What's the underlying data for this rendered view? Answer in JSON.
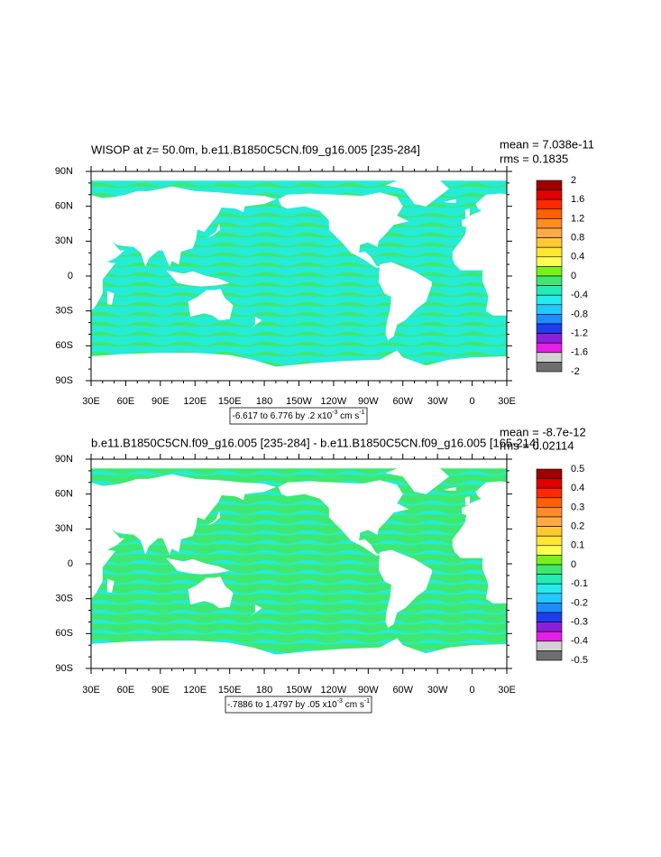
{
  "panels": [
    {
      "title": "WISOP at z=  50.0m, b.e11.B1850C5CN.f09_g16.005 [235-284]",
      "mean": "mean = 7.038e-11",
      "rms": "rms = 0.1835",
      "y_labels": [
        "90N",
        "60N",
        "30N",
        "0",
        "30S",
        "60S",
        "90S"
      ],
      "x_labels": [
        "30E",
        "60E",
        "90E",
        "120E",
        "150E",
        "180",
        "150W",
        "120W",
        "90W",
        "60W",
        "30W",
        "0",
        "30E"
      ],
      "info": {
        "text": "-6.617 to 6.776 by .2 x10",
        "exp": "-3",
        "unit": " cm s",
        "unit_exp": "-1"
      },
      "colorbar_labels": [
        2,
        1.6,
        1.2,
        0.8,
        0.4,
        0,
        -0.4,
        -0.8,
        -1.2,
        -1.6,
        -2
      ],
      "ocean_base": "#24ecd8",
      "ocean_streak": "#3ee870"
    },
    {
      "title": "b.e11.B1850C5CN.f09_g16.005 [235-284] - b.e11.B1850C5CN.f09_g16.005 [165-214]",
      "mean": "mean = -8.7e-12",
      "rms": "rms = 0.02114",
      "y_labels": [
        "90N",
        "60N",
        "30N",
        "0",
        "30S",
        "60S",
        "90S"
      ],
      "x_labels": [
        "30E",
        "60E",
        "90E",
        "120E",
        "150E",
        "180",
        "150W",
        "120W",
        "90W",
        "60W",
        "30W",
        "0",
        "30E"
      ],
      "info": {
        "text": "-.7886 to 1.4797 by .05 x10",
        "exp": "-3",
        "unit": " cm s",
        "unit_exp": "-1"
      },
      "colorbar_labels": [
        0.5,
        0.4,
        0.3,
        0.2,
        0.1,
        0,
        -0.1,
        -0.2,
        -0.3,
        -0.4,
        -0.5
      ],
      "ocean_base": "#3ee870",
      "ocean_streak": "#24ecd8"
    }
  ],
  "colorbar_colors": [
    "#a00000",
    "#e00000",
    "#ff2800",
    "#ff6000",
    "#ff8c28",
    "#ffaa46",
    "#ffc832",
    "#ffe632",
    "#ffff50",
    "#78f01e",
    "#3ee870",
    "#24ecb4",
    "#24ecec",
    "#22c8ff",
    "#1e8cff",
    "#1e3cf0",
    "#8c1edc",
    "#e61ee6",
    "#d2d2d2",
    "#6e6e6e"
  ]
}
